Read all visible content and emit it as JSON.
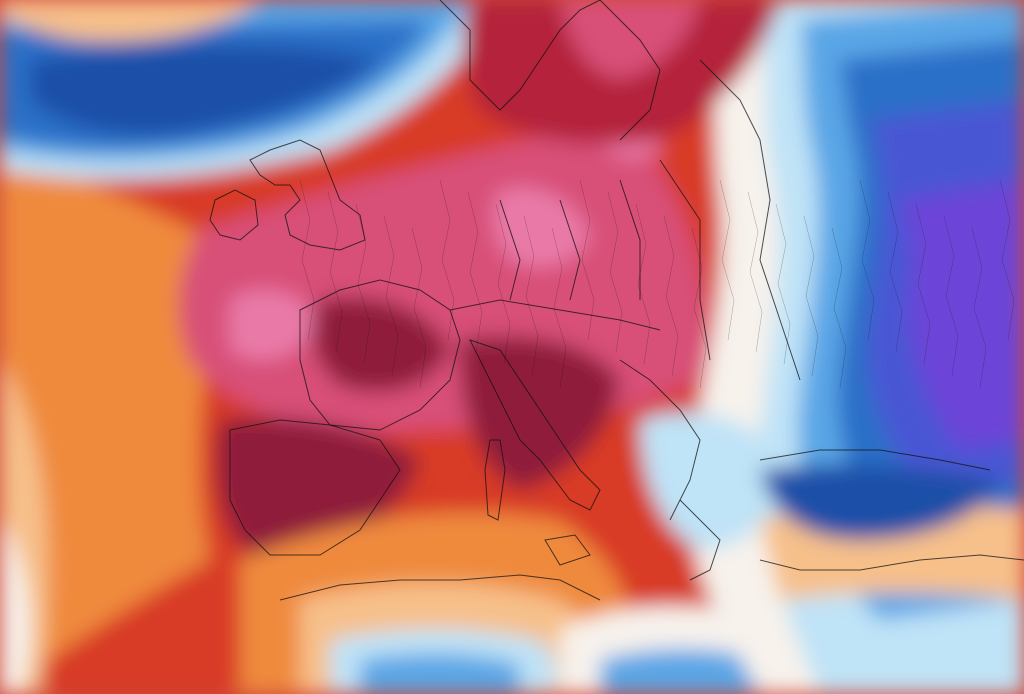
{
  "map": {
    "kind": "temperature-anomaly-map",
    "region": "europe",
    "palette": {
      "deep-cold": "#1a4fa8",
      "cold": "#2c6fc8",
      "cool": "#5aa6e6",
      "near-zero": "#bfe3f7",
      "neutral": "#f7f2ec",
      "mild": "#f7c08a",
      "warm": "#ef8a3c",
      "hot": "#d83a26",
      "very-hot": "#b4203a",
      "extreme": "#8f1f3a",
      "extreme-pink": "#d85078",
      "hot-spot": "#e97aa8",
      "very-cold-violet": "#6c45d8",
      "cold-violet": "#4a56d4",
      "borders": "#111111"
    },
    "legend": "",
    "labels": []
  }
}
